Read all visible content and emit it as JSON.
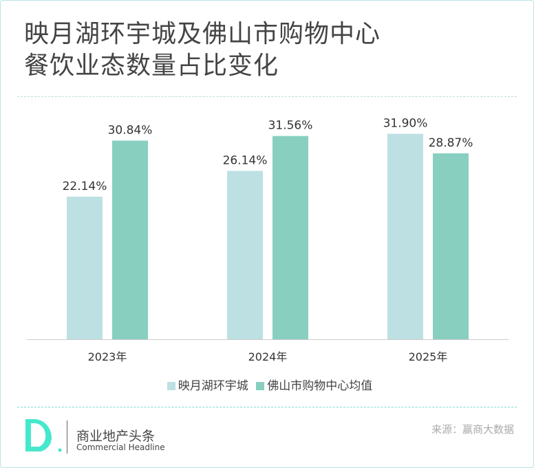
{
  "chart_data": {
    "type": "bar",
    "title": "映月湖环宇城及佛山市购物中心\n餐饮业态数量占比变化",
    "title_lines": [
      "映月湖环宇城及佛山市购物中心",
      "餐饮业态数量占比变化"
    ],
    "categories": [
      "2023年",
      "2024年",
      "2025年"
    ],
    "series": [
      {
        "name": "映月湖环宇城",
        "values": [
          22.14,
          26.14,
          31.9
        ],
        "labels": [
          "22.14%",
          "26.14%",
          "31.90%"
        ],
        "color": "#bde0e3"
      },
      {
        "name": "佛山市购物中心均值",
        "values": [
          30.84,
          31.56,
          28.87
        ],
        "labels": [
          "30.84%",
          "31.56%",
          "28.87%"
        ],
        "color": "#88cfc0"
      }
    ],
    "unit": "%",
    "ylim": [
      0,
      40
    ],
    "grid": false,
    "legend": "bottom"
  },
  "footer": {
    "brand_cn": "商业地产头条",
    "brand_en": "Commercial Headline",
    "source": "来源：赢商大数据",
    "logo_letter": "D"
  }
}
